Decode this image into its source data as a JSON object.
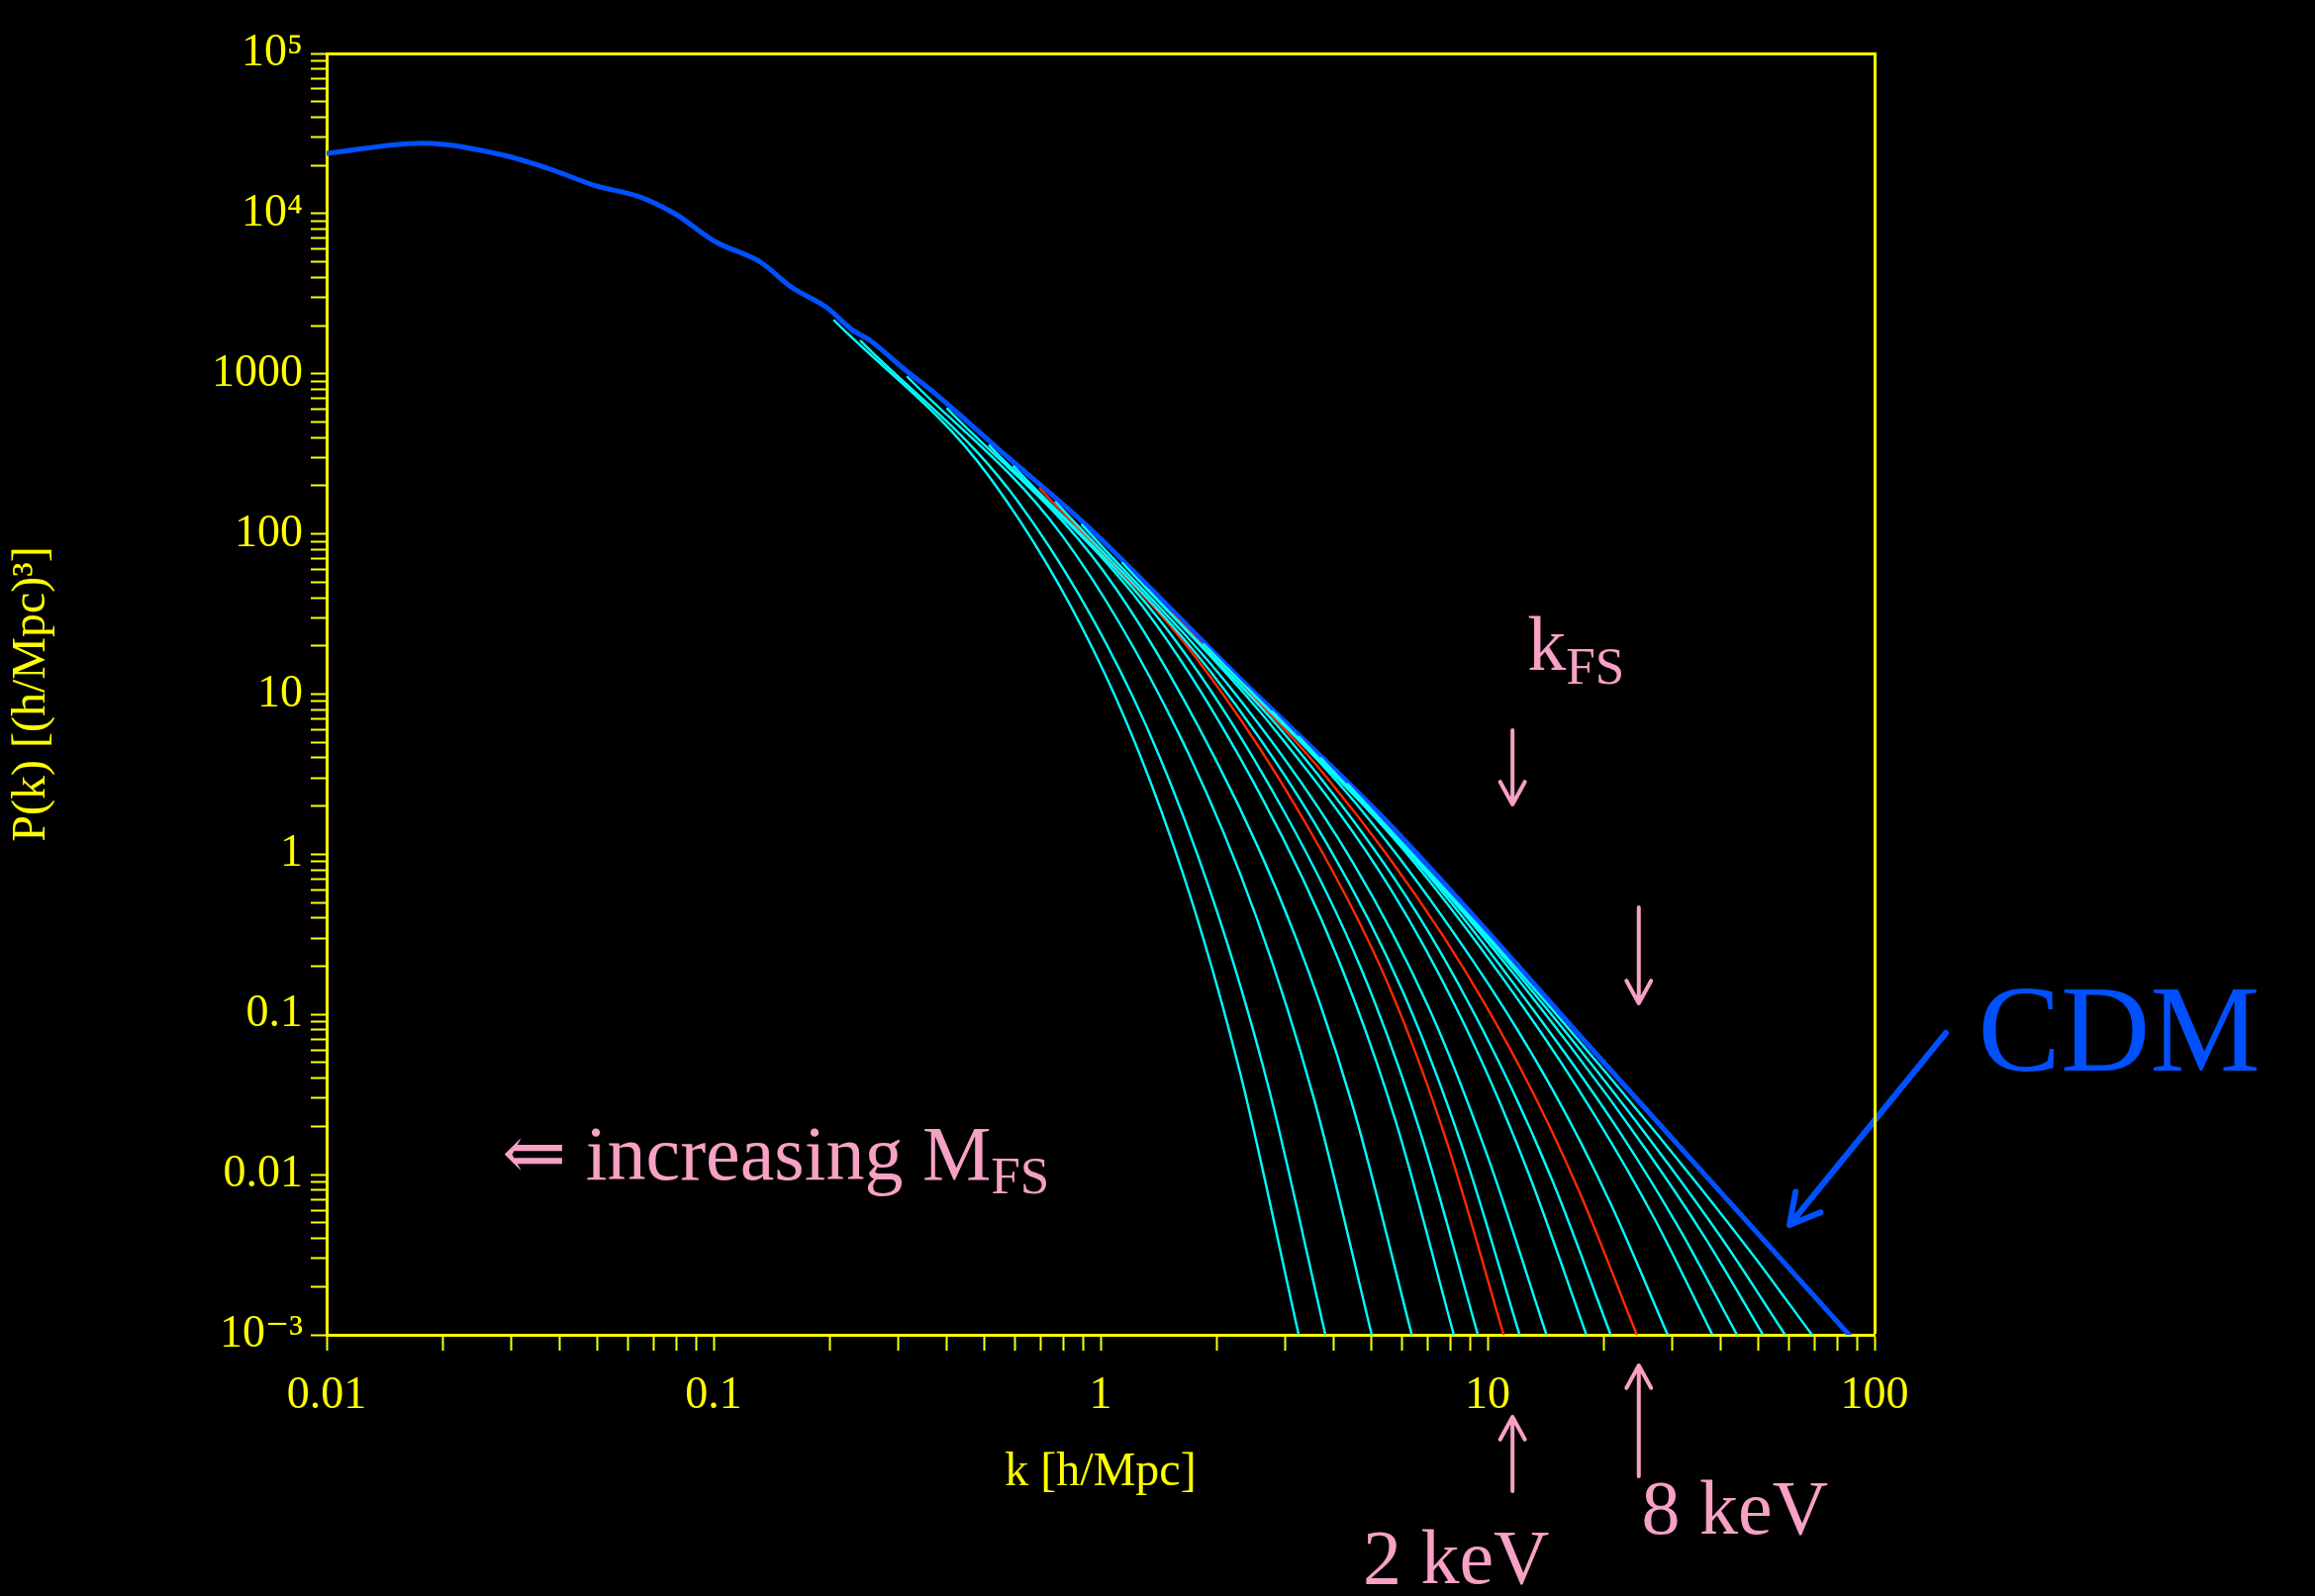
{
  "chart_data": {
    "type": "line",
    "log": "xy",
    "xlabel": "k [h/Mpc]",
    "ylabel": "P(k) [(h/Mpc)³]",
    "xlim": [
      0.01,
      100
    ],
    "ylim": [
      0.001,
      100000
    ],
    "xticks": [
      0.01,
      {
        "value": 0.02,
        "label": null
      },
      {
        "value": 0.03,
        "label": null
      },
      {
        "value": 0.04,
        "label": null
      },
      {
        "value": 0.05,
        "label": null
      },
      {
        "value": 0.06,
        "label": null
      },
      {
        "value": 0.07,
        "label": null
      },
      {
        "value": 0.08,
        "label": null
      },
      {
        "value": 0.09,
        "label": null
      },
      0.1,
      {
        "value": 0.2,
        "label": null
      },
      {
        "value": 0.3,
        "label": null
      },
      {
        "value": 0.4,
        "label": null
      },
      {
        "value": 0.5,
        "label": null
      },
      {
        "value": 0.6,
        "label": null
      },
      {
        "value": 0.7,
        "label": null
      },
      {
        "value": 0.8,
        "label": null
      },
      {
        "value": 0.9,
        "label": null
      },
      1,
      {
        "value": 2,
        "label": null
      },
      {
        "value": 3,
        "label": null
      },
      {
        "value": 4,
        "label": null
      },
      {
        "value": 5,
        "label": null
      },
      {
        "value": 6,
        "label": null
      },
      {
        "value": 7,
        "label": null
      },
      {
        "value": 8,
        "label": null
      },
      {
        "value": 9,
        "label": null
      },
      10,
      {
        "value": 20,
        "label": null
      },
      {
        "value": 30,
        "label": null
      },
      {
        "value": 40,
        "label": null
      },
      {
        "value": 50,
        "label": null
      },
      {
        "value": 60,
        "label": null
      },
      {
        "value": 70,
        "label": null
      },
      {
        "value": 80,
        "label": null
      },
      {
        "value": 90,
        "label": null
      },
      100
    ],
    "yticks": [
      {
        "value": 0.001,
        "label": "10⁻³"
      },
      {
        "value": 0.002,
        "label": null
      },
      {
        "value": 0.003,
        "label": null
      },
      {
        "value": 0.004,
        "label": null
      },
      {
        "value": 0.005,
        "label": null
      },
      {
        "value": 0.006,
        "label": null
      },
      {
        "value": 0.007,
        "label": null
      },
      {
        "value": 0.008,
        "label": null
      },
      {
        "value": 0.009,
        "label": null
      },
      0.01,
      {
        "value": 0.02,
        "label": null
      },
      {
        "value": 0.03,
        "label": null
      },
      {
        "value": 0.04,
        "label": null
      },
      {
        "value": 0.05,
        "label": null
      },
      {
        "value": 0.06,
        "label": null
      },
      {
        "value": 0.07,
        "label": null
      },
      {
        "value": 0.08,
        "label": null
      },
      {
        "value": 0.09,
        "label": null
      },
      0.1,
      {
        "value": 0.2,
        "label": null
      },
      {
        "value": 0.3,
        "label": null
      },
      {
        "value": 0.4,
        "label": null
      },
      {
        "value": 0.5,
        "label": null
      },
      {
        "value": 0.6,
        "label": null
      },
      {
        "value": 0.7,
        "label": null
      },
      {
        "value": 0.8,
        "label": null
      },
      {
        "value": 0.9,
        "label": null
      },
      1,
      {
        "value": 2,
        "label": null
      },
      {
        "value": 3,
        "label": null
      },
      {
        "value": 4,
        "label": null
      },
      {
        "value": 5,
        "label": null
      },
      {
        "value": 6,
        "label": null
      },
      {
        "value": 7,
        "label": null
      },
      {
        "value": 8,
        "label": null
      },
      {
        "value": 9,
        "label": null
      },
      10,
      {
        "value": 20,
        "label": null
      },
      {
        "value": 30,
        "label": null
      },
      {
        "value": 40,
        "label": null
      },
      {
        "value": 50,
        "label": null
      },
      {
        "value": 60,
        "label": null
      },
      {
        "value": 70,
        "label": null
      },
      {
        "value": 80,
        "label": null
      },
      {
        "value": 90,
        "label": null
      },
      100,
      {
        "value": 200,
        "label": null
      },
      {
        "value": 300,
        "label": null
      },
      {
        "value": 400,
        "label": null
      },
      {
        "value": 500,
        "label": null
      },
      {
        "value": 600,
        "label": null
      },
      {
        "value": 700,
        "label": null
      },
      {
        "value": 800,
        "label": null
      },
      {
        "value": 900,
        "label": null
      },
      1000,
      {
        "value": 2000,
        "label": null
      },
      {
        "value": 3000,
        "label": null
      },
      {
        "value": 4000,
        "label": null
      },
      {
        "value": 5000,
        "label": null
      },
      {
        "value": 6000,
        "label": null
      },
      {
        "value": 7000,
        "label": null
      },
      {
        "value": 8000,
        "label": null
      },
      {
        "value": 9000,
        "label": null
      },
      {
        "value": 10000,
        "label": "10⁴"
      },
      {
        "value": 20000,
        "label": null
      },
      {
        "value": 30000,
        "label": null
      },
      {
        "value": 40000,
        "label": null
      },
      {
        "value": 50000,
        "label": null
      },
      {
        "value": 60000,
        "label": null
      },
      {
        "value": 70000,
        "label": null
      },
      {
        "value": 80000,
        "label": null
      },
      {
        "value": 90000,
        "label": null
      },
      {
        "value": 100000,
        "label": "10⁵"
      }
    ],
    "annotations": [
      "⇐ increasing M$_{FS}$",
      "k$_{FS}$",
      {
        "text": "2 keV",
        "x": 11.0,
        "y": 0.001
      },
      {
        "text": "8 keV",
        "x": 24.3,
        "y": 0.001
      }
    ],
    "series": [
      {
        "color": "#00ffff",
        "x": [
          0.205,
          0.516,
          1.03,
          1.63,
          2.3,
          3.25
        ],
        "values": [
          2150,
          227,
          13.1,
          0.766,
          0.0421,
          0.001
        ]
      },
      {
        "color": "#00ffff",
        "x": [
          0.24,
          0.604,
          1.21,
          1.91,
          2.7,
          3.81
        ],
        "values": [
          1600,
          166,
          9.68,
          0.61,
          0.0371,
          0.001
        ]
      },
      {
        "color": "#00ffff",
        "x": [
          0.317,
          0.796,
          1.59,
          2.52,
          3.56,
          5.02
        ],
        "values": [
          955,
          97.5,
          5.71,
          0.413,
          0.0297,
          0.001
        ]
      },
      {
        "color": "#00ffff",
        "x": [
          0.402,
          1.01,
          2.01,
          3.19,
          4.51,
          6.37
        ],
        "values": [
          604,
          60.0,
          3.66,
          0.305,
          0.0255,
          0.001
        ]
      },
      {
        "color": "#00ffff",
        "x": [
          0.516,
          1.3,
          2.59,
          4.1,
          5.79,
          8.18
        ],
        "values": [
          356,
          34.0,
          2.34,
          0.225,
          0.0215,
          0.001
        ]
      },
      {
        "color": "#00ffff",
        "x": [
          0.596,
          1.5,
          2.99,
          4.73,
          6.68,
          9.44
        ],
        "values": [
          264,
          24.6,
          1.82,
          0.189,
          0.0189,
          0.001
        ]
      },
      {
        "color": "#00ffff",
        "x": [
          0.766,
          1.92,
          3.84,
          6.08,
          8.59,
          12.1
        ],
        "values": [
          158,
          13.9,
          1.17,
          0.134,
          0.015,
          0.001
        ]
      },
      {
        "color": "#00ffff",
        "x": [
          0.895,
          2.25,
          4.49,
          7.11,
          10.0,
          14.2
        ],
        "values": [
          114,
          9.75,
          0.887,
          0.105,
          0.013,
          0.001
        ]
      },
      {
        "color": "#00ffff",
        "x": [
          1.14,
          2.85,
          5.69,
          9.02,
          12.7,
          18.0
        ],
        "values": [
          65.8,
          5.81,
          0.577,
          0.0726,
          0.0105,
          0.001
        ]
      },
      {
        "color": "#00ffff",
        "x": [
          1.31,
          3.3,
          6.58,
          10.4,
          14.7,
          20.8
        ],
        "values": [
          46.3,
          4.23,
          0.426,
          0.0579,
          0.0092,
          0.001
        ]
      },
      {
        "color": "#00ffff",
        "x": [
          1.85,
          4.63,
          9.25,
          14.7,
          20.7,
          29.2
        ],
        "values": [
          20.5,
          2.0,
          0.209,
          0.0341,
          0.00675,
          0.001
        ]
      },
      {
        "color": "#00ffff",
        "x": [
          2.4,
          6.04,
          12.1,
          19.1,
          27.0,
          38.1
        ],
        "values": [
          10.9,
          1.08,
          0.12,
          0.0226,
          0.0053,
          0.001
        ]
      },
      {
        "color": "#00ffff",
        "x": [
          2.78,
          6.98,
          13.9,
          22.1,
          31.2,
          44.1
        ],
        "values": [
          7.78,
          0.753,
          0.0887,
          0.018,
          0.00465,
          0.001
        ]
      },
      {
        "color": "#00ffff",
        "x": [
          3.25,
          8.17,
          16.3,
          25.8,
          36.5,
          51.5
        ],
        "values": [
          5.41,
          0.507,
          0.064,
          0.0141,
          0.00403,
          0.001
        ]
      },
      {
        "color": "#00ffff",
        "x": [
          3.71,
          9.31,
          18.6,
          29.4,
          41.6,
          58.7
        ],
        "values": [
          3.99,
          0.365,
          0.0486,
          0.0115,
          0.00357,
          0.001
        ]
      },
      {
        "color": "#00ffff",
        "x": [
          4.35,
          10.9,
          21.8,
          34.5,
          48.8,
          68.9
        ],
        "values": [
          2.75,
          0.244,
          0.0349,
          0.00902,
          0.00309,
          0.001
        ]
      },
      {
        "color": "#ff2a00",
        "x": [
          0.697,
          1.75,
          3.49,
          5.53,
          7.82,
          11.0
        ],
        "values": [
          192,
          17.3,
          1.38,
          0.155,
          0.0164,
          0.001
        ]
      },
      {
        "color": "#ff2a00",
        "x": [
          1.53,
          3.85,
          7.69,
          12.2,
          17.2,
          24.3
        ],
        "values": [
          31.8,
          3.0,
          0.307,
          0.0454,
          0.00798,
          0.001
        ]
      },
      {
        "name": "CDM",
        "color": "#0050ff",
        "x": [
          0.01,
          0.0177,
          0.0286,
          0.0375,
          0.0492,
          0.0646,
          0.0796,
          0.101,
          0.132,
          0.159,
          0.196,
          0.228,
          0.253,
          0.308,
          0.38,
          0.561,
          0.857,
          1,
          2.24,
          5.45,
          20.0,
          85.9
        ],
        "values": [
          23800,
          27500,
          23200,
          19100,
          15000,
          12700,
          9950,
          6680,
          4990,
          3470,
          2590,
          1880,
          1620,
          1090,
          728,
          318,
          132,
          93.3,
          13.2,
          1.63,
          0.05,
          0.001
        ]
      }
    ]
  }
}
